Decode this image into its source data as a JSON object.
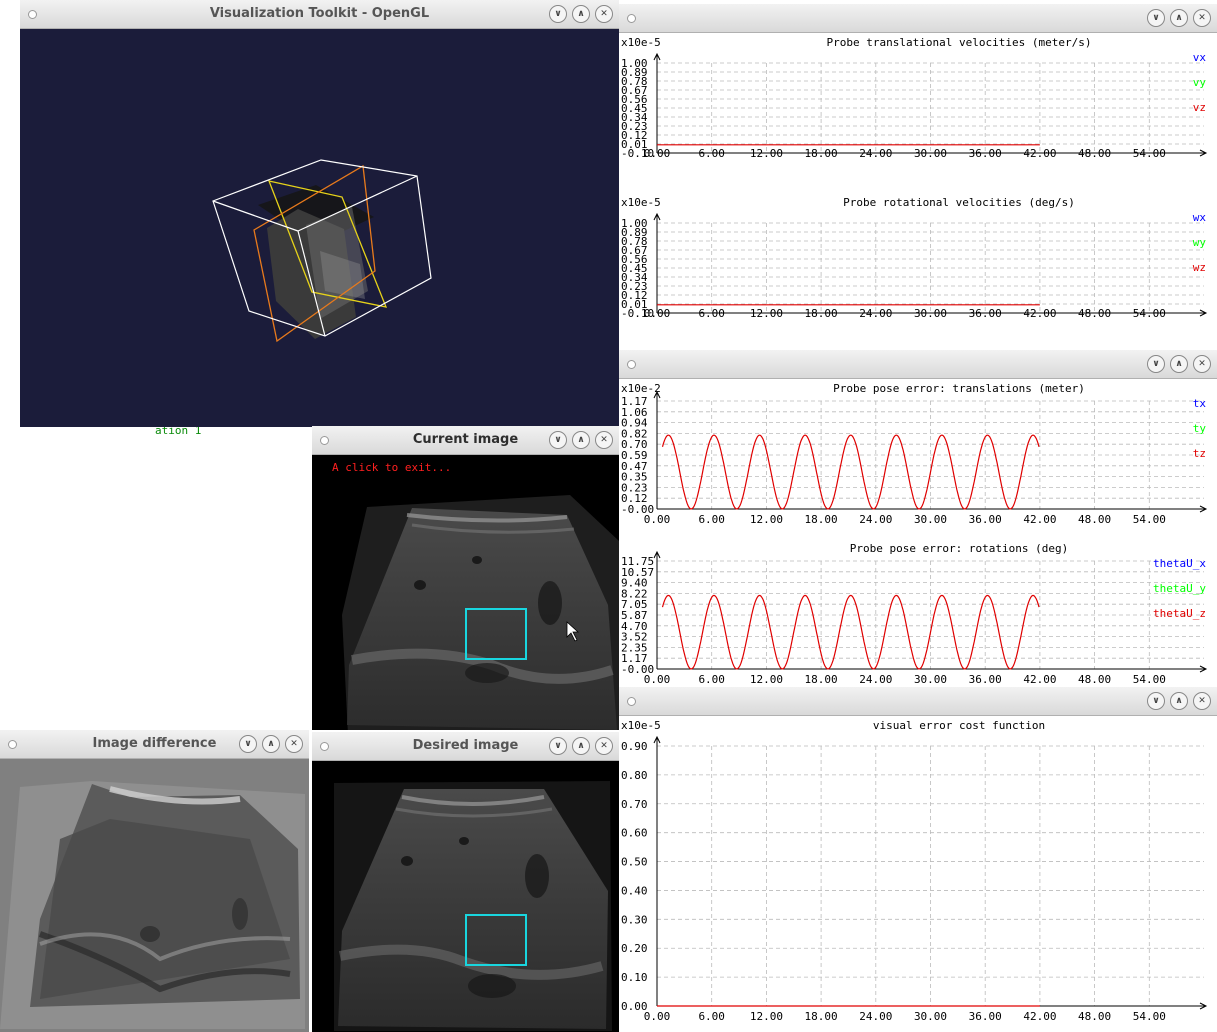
{
  "vtk_window": {
    "title": "Visualization Toolkit - OpenGL",
    "background": "#1b1c3a"
  },
  "current_window": {
    "title": "Current image",
    "exit_text": "A click to exit...",
    "roi_color": "#19d6df"
  },
  "difference_window": {
    "title": "Image difference"
  },
  "desired_window": {
    "title": "Desired image",
    "roi_color": "#19d6df"
  },
  "background_text": "ation 1",
  "window_buttons": {
    "minimize": "∨",
    "maximize": "∧",
    "close": "✕"
  },
  "icons": {
    "minimize": "chevron-down-icon",
    "maximize": "chevron-up-icon",
    "close": "close-icon",
    "cursor": "mouse-pointer-icon"
  },
  "colors": {
    "series_blue": "#0000ff",
    "series_green": "#00ff00",
    "series_red": "#e00000"
  },
  "chart_data": [
    {
      "type": "line",
      "title": "Probe translational velocities (meter/s)",
      "scale": "x10e-5",
      "yticks": [
        "1.00",
        "0.89",
        "0.78",
        "0.67",
        "0.56",
        "0.45",
        "0.34",
        "0.23",
        "0.12",
        "0.01",
        "-0.10"
      ],
      "xticks": [
        "0.00",
        "6.00",
        "12.00",
        "18.00",
        "24.00",
        "30.00",
        "36.00",
        "42.00",
        "48.00",
        "54.00"
      ],
      "legend": [
        "vx",
        "vy",
        "vz"
      ],
      "ylim": [
        -0.1,
        1.0
      ],
      "xlim": [
        0,
        60
      ],
      "grid": true,
      "series": [
        {
          "name": "vz",
          "kind": "flat",
          "value": 0.0,
          "x_end": 42
        }
      ]
    },
    {
      "type": "line",
      "title": "Probe rotational velocities (deg/s)",
      "scale": "x10e-5",
      "yticks": [
        "1.00",
        "0.89",
        "0.78",
        "0.67",
        "0.56",
        "0.45",
        "0.34",
        "0.23",
        "0.12",
        "0.01",
        "-0.10"
      ],
      "xticks": [
        "0.00",
        "6.00",
        "12.00",
        "18.00",
        "24.00",
        "30.00",
        "36.00",
        "42.00",
        "48.00",
        "54.00"
      ],
      "legend": [
        "wx",
        "wy",
        "wz"
      ],
      "ylim": [
        -0.1,
        1.0
      ],
      "xlim": [
        0,
        60
      ],
      "grid": true,
      "series": [
        {
          "name": "wz",
          "kind": "flat",
          "value": 0.0,
          "x_end": 42
        }
      ]
    },
    {
      "type": "line",
      "title": "Probe pose error: translations (meter)",
      "scale": "x10e-2",
      "yticks": [
        "1.17",
        "1.06",
        "0.94",
        "0.82",
        "0.70",
        "0.59",
        "0.47",
        "0.35",
        "0.23",
        "0.12",
        "-0.00"
      ],
      "xticks": [
        "0.00",
        "6.00",
        "12.00",
        "18.00",
        "24.00",
        "30.00",
        "36.00",
        "42.00",
        "48.00",
        "54.00"
      ],
      "legend": [
        "tx",
        "ty",
        "tz"
      ],
      "ylim": [
        0.0,
        1.17
      ],
      "xlim": [
        0,
        60
      ],
      "grid": true,
      "series": [
        {
          "name": "tz",
          "kind": "sine",
          "amplitude": 0.4,
          "offset": 0.4,
          "period": 5,
          "phase_x": 1.25,
          "x_start": 0.6,
          "x_end": 42
        }
      ]
    },
    {
      "type": "line",
      "title": "Probe pose error: rotations (deg)",
      "scale": "",
      "yticks": [
        "11.75",
        "10.57",
        "9.40",
        "8.22",
        "7.05",
        "5.87",
        "4.70",
        "3.52",
        "2.35",
        "1.17",
        "-0.00"
      ],
      "xticks": [
        "0.00",
        "6.00",
        "12.00",
        "18.00",
        "24.00",
        "30.00",
        "36.00",
        "42.00",
        "48.00",
        "54.00"
      ],
      "legend": [
        "thetaU_x",
        "thetaU_y",
        "thetaU_z"
      ],
      "ylim": [
        0.0,
        11.75
      ],
      "xlim": [
        0,
        60
      ],
      "grid": true,
      "series": [
        {
          "name": "thetaU_z",
          "kind": "sine",
          "amplitude": 4.0,
          "offset": 4.0,
          "period": 5,
          "phase_x": 1.25,
          "x_start": 0.6,
          "x_end": 42
        }
      ]
    },
    {
      "type": "line",
      "title": "visual error cost function",
      "scale": "x10e-5",
      "yticks": [
        "0.90",
        "0.80",
        "0.70",
        "0.60",
        "0.50",
        "0.40",
        "0.30",
        "0.20",
        "0.10",
        "0.00"
      ],
      "xticks": [
        "0.00",
        "6.00",
        "12.00",
        "18.00",
        "24.00",
        "30.00",
        "36.00",
        "42.00",
        "48.00",
        "54.00"
      ],
      "legend": [],
      "ylim": [
        0.0,
        1.0
      ],
      "xlim": [
        0,
        60
      ],
      "grid": true,
      "series": [
        {
          "name": "",
          "kind": "flat",
          "value": 0.0,
          "x_end": 42
        }
      ]
    }
  ]
}
